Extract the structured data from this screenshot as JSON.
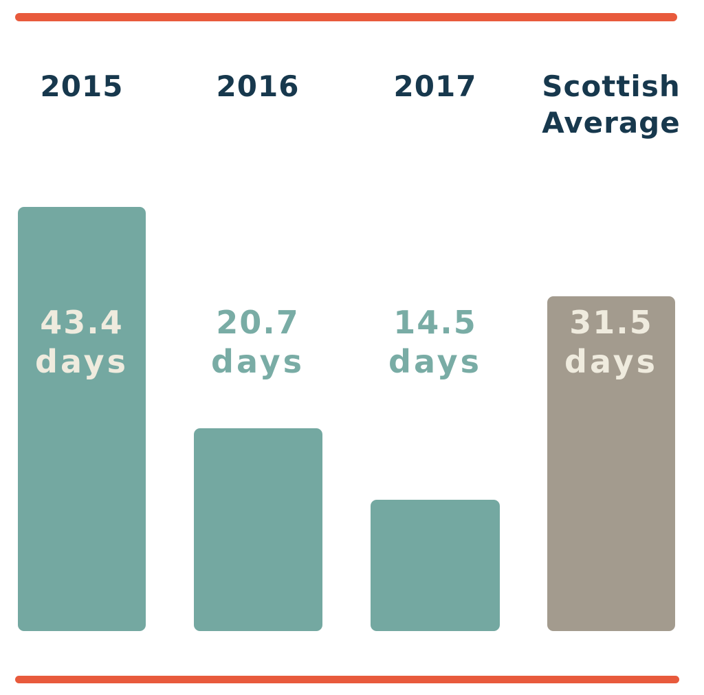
{
  "chart_data": {
    "type": "bar",
    "categories": [
      "2015",
      "2016",
      "2017",
      "Scottish Average"
    ],
    "values": [
      43.4,
      20.7,
      14.5,
      31.5
    ],
    "unit": "days",
    "value_labels": [
      "43.4 days",
      "20.7 days",
      "14.5 days",
      "31.5 days"
    ],
    "title": "",
    "xlabel": "",
    "ylabel": "",
    "ylim": [
      0,
      45
    ],
    "grid": false,
    "legend": false,
    "bar_colors": [
      "#74a8a1",
      "#74a8a1",
      "#74a8a1",
      "#a39b8e"
    ]
  },
  "columns": [
    {
      "header_lines": [
        "2015"
      ],
      "value": "43.4",
      "unit": "days"
    },
    {
      "header_lines": [
        "2016"
      ],
      "value": "20.7",
      "unit": "days"
    },
    {
      "header_lines": [
        "2017"
      ],
      "value": "14.5",
      "unit": "days"
    },
    {
      "header_lines": [
        "Scottish",
        "Average"
      ],
      "value": "31.5",
      "unit": "days"
    }
  ],
  "colors": {
    "accent_rule": "#e85a3c",
    "bar_teal": "#74a8a1",
    "bar_taupe": "#a39b8e",
    "heading_navy": "#17384d",
    "label_cream": "#efebde",
    "label_teal": "#79aca5",
    "background": "#ffffff"
  }
}
